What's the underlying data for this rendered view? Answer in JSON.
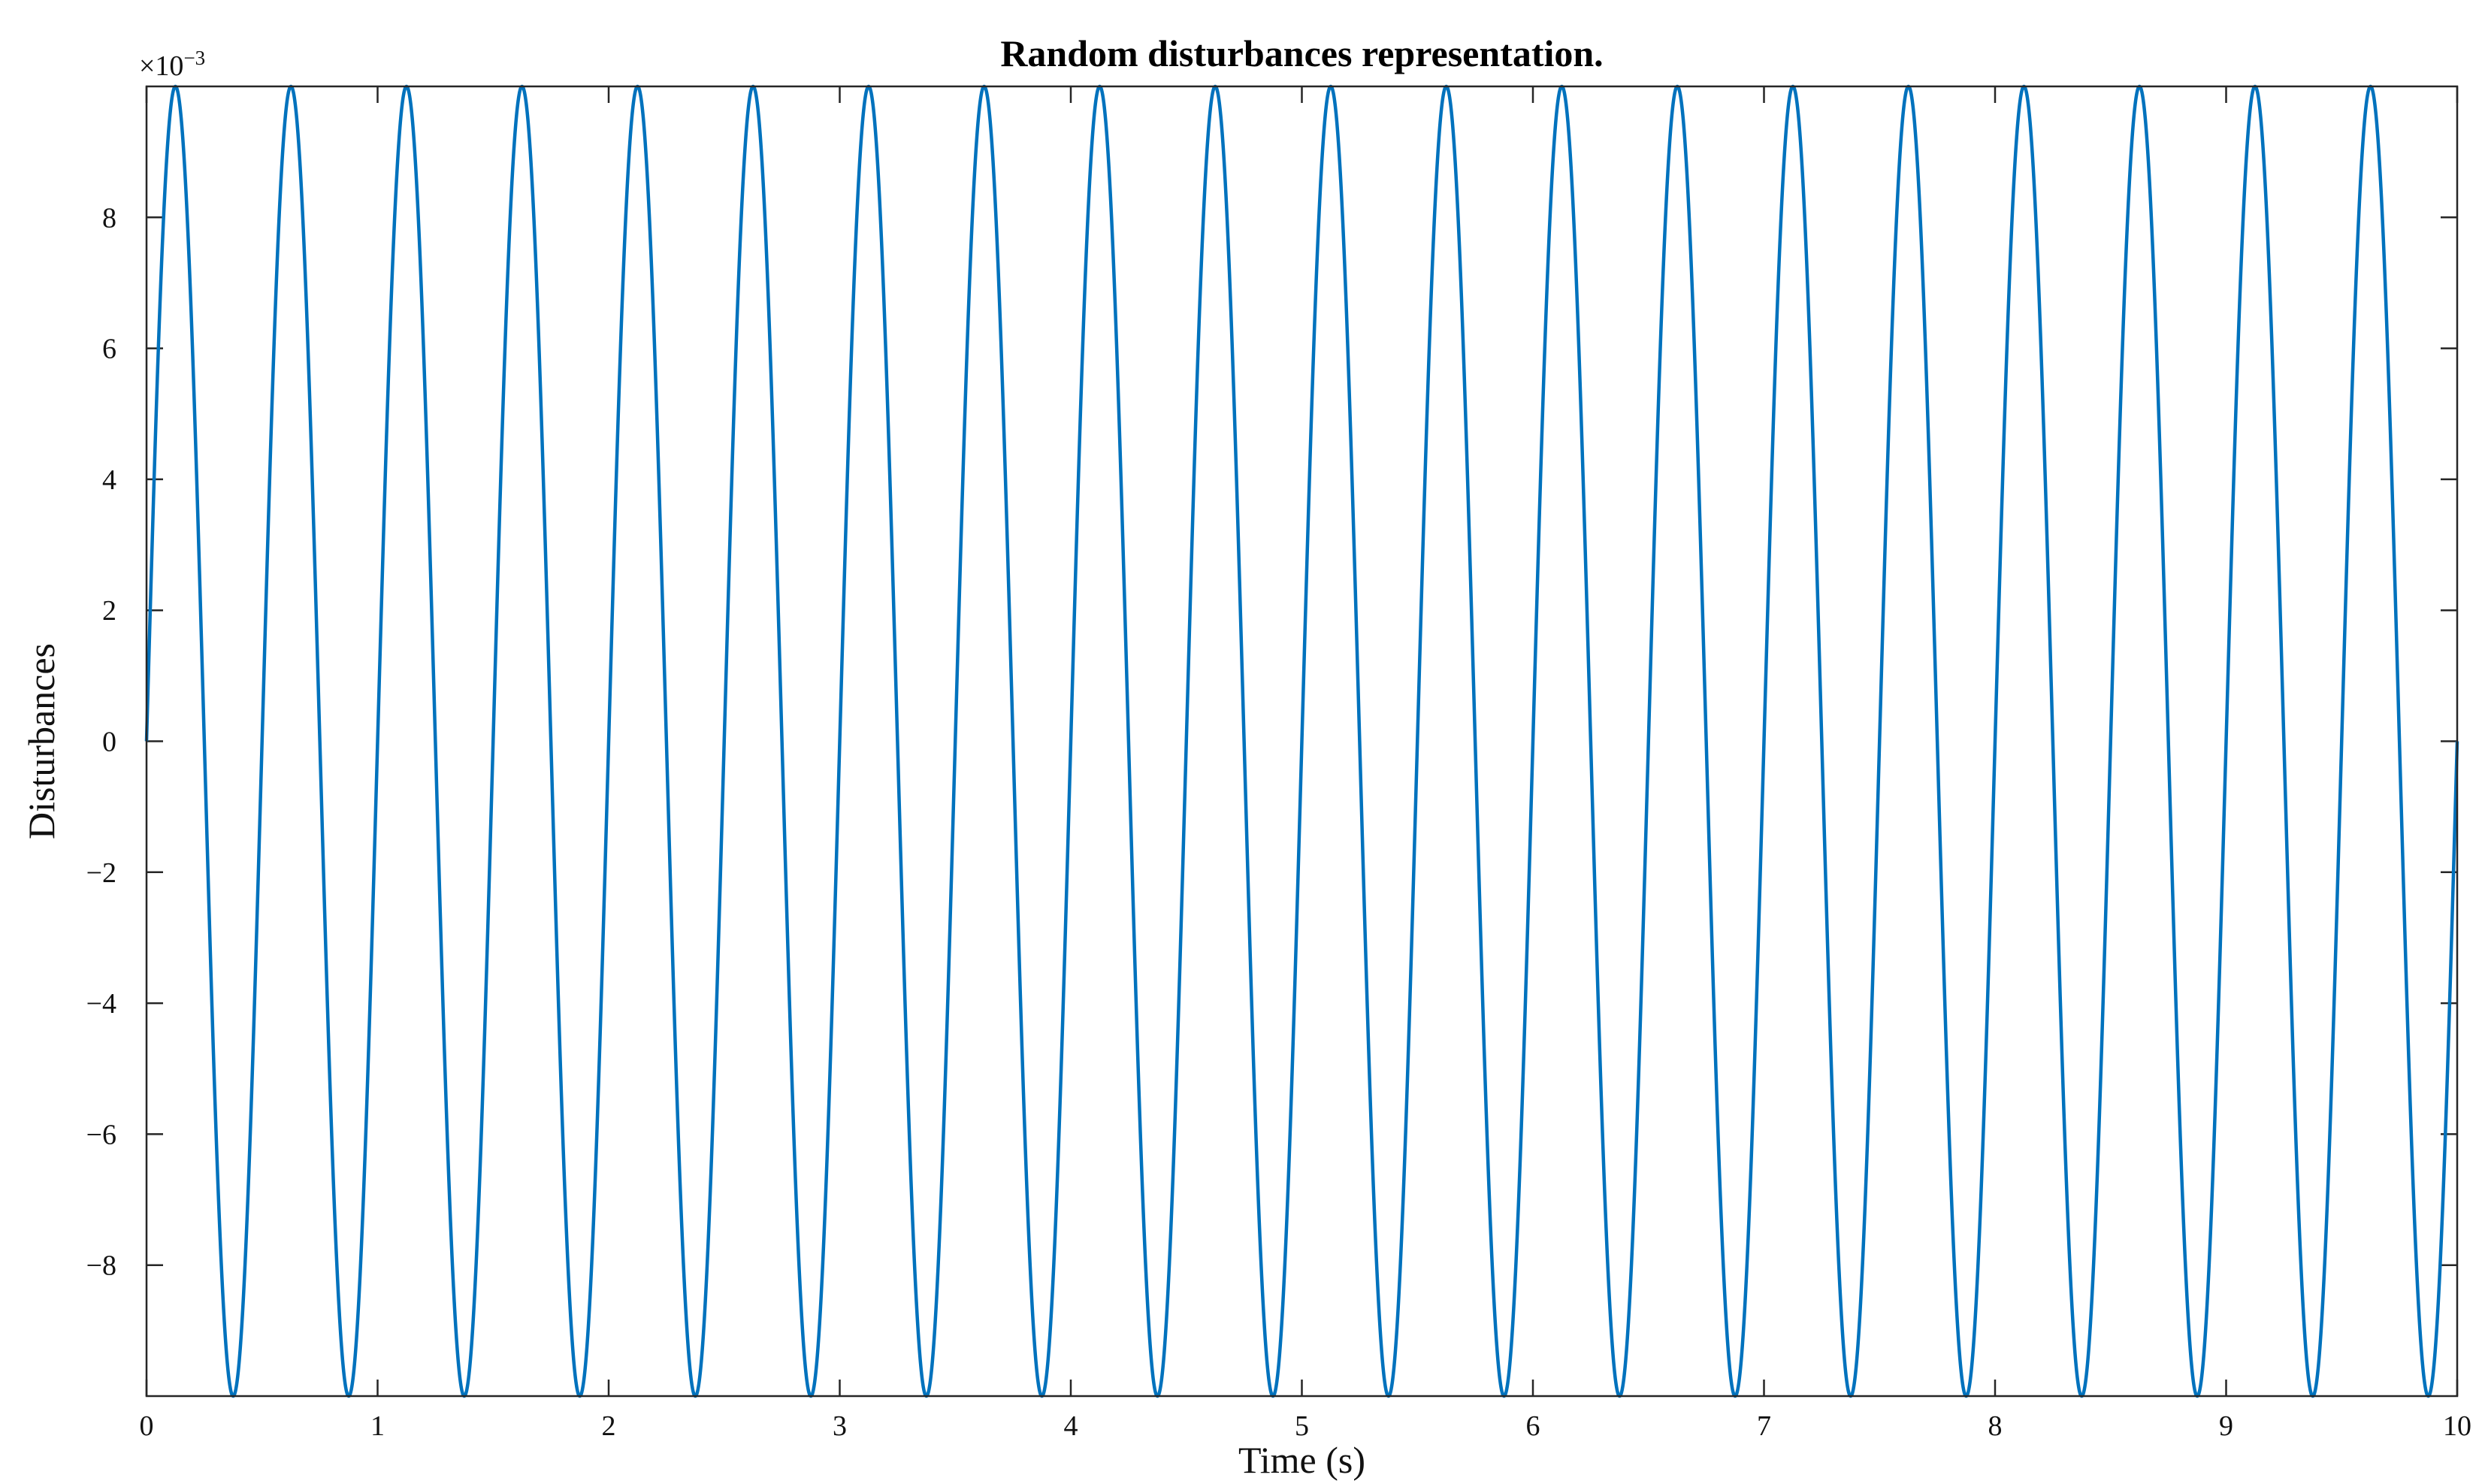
{
  "chart_data": {
    "type": "line",
    "title": "Random disturbances representation.",
    "xlabel": "Time (s)",
    "ylabel": "Disturbances",
    "y_multiplier_base": "×10",
    "y_multiplier_exp": "−3",
    "xlim": [
      0,
      10
    ],
    "ylim": [
      -0.01,
      0.01
    ],
    "x_ticks": [
      0,
      1,
      2,
      3,
      4,
      5,
      6,
      7,
      8,
      9,
      10
    ],
    "x_tick_labels": [
      "0",
      "1",
      "2",
      "3",
      "4",
      "5",
      "6",
      "7",
      "8",
      "9",
      "10"
    ],
    "y_ticks": [
      -0.008,
      -0.006,
      -0.004,
      -0.002,
      0,
      0.002,
      0.004,
      0.006,
      0.008
    ],
    "y_tick_labels": [
      "−8",
      "−6",
      "−4",
      "−2",
      "0",
      "2",
      "4",
      "6",
      "8"
    ],
    "grid": false,
    "line_color": "#0072BD",
    "series": [
      {
        "function": "sine",
        "amplitude": 0.01,
        "frequency_hz": 2,
        "phase": 0,
        "x_start": 0,
        "x_end": 10
      }
    ]
  }
}
